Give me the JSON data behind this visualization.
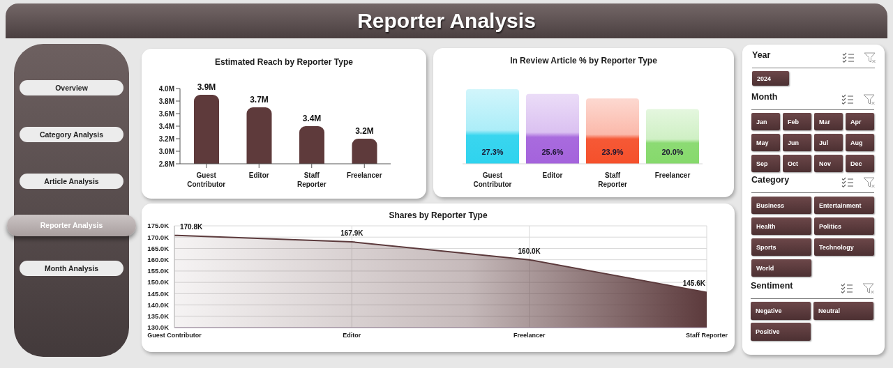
{
  "chart_data": [
    {
      "type": "other",
      "title": "Reporter Analysis"
    },
    {
      "type": "other",
      "annotations": [
        "Overview",
        "Category Analysis",
        "Article Analysis",
        "Reporter Analysis",
        "Month Analysis"
      ]
    },
    {
      "type": "bar",
      "title": "Estimated Reach by Reporter Type",
      "categories": [
        "Guest Contributor",
        "Editor",
        "Staff Reporter",
        "Freelancer"
      ],
      "values": [
        3.9,
        3.7,
        3.4,
        3.2
      ],
      "value_labels": [
        "3.9M",
        "3.7M",
        "3.4M",
        "3.2M"
      ],
      "color": "#5e3a3b",
      "ylim": [
        2.8,
        4.0
      ],
      "yticks": [
        {
          "value": 2.8,
          "label": "2.8M"
        },
        {
          "value": 3.0,
          "label": "3.0M"
        },
        {
          "value": 3.2,
          "label": "3.2M"
        },
        {
          "value": 3.4,
          "label": "3.4M"
        },
        {
          "value": 3.6,
          "label": "3.6M"
        },
        {
          "value": 3.8,
          "label": "3.8M"
        },
        {
          "value": 4.0,
          "label": "4.0M"
        }
      ]
    },
    {
      "type": "bar",
      "title": "In Review Article % by Reporter Type",
      "categories": [
        "Guest Contributor",
        "Editor",
        "Staff Reporter",
        "Freelancer"
      ],
      "values": [
        27.3,
        25.6,
        23.9,
        20.0
      ],
      "value_labels": [
        "27.3%",
        "25.6%",
        "23.9%",
        "20.0%"
      ],
      "colors": [
        "#2fd3ee",
        "#a463dc",
        "#f5502b",
        "#86d96c"
      ]
    },
    {
      "type": "area",
      "title": "Shares by Reporter Type",
      "categories": [
        "Guest Contributor",
        "Editor",
        "Freelancer",
        "Staff Reporter"
      ],
      "values": [
        170.8,
        167.9,
        160.0,
        145.6
      ],
      "value_labels": [
        "170.8K",
        "167.9K",
        "160.0K",
        "145.6K"
      ],
      "color": "#5c3a3c",
      "ylim": [
        130,
        175
      ],
      "yticks": [
        {
          "value": 130,
          "label": "130.0K"
        },
        {
          "value": 135,
          "label": "135.0K"
        },
        {
          "value": 140,
          "label": "140.0K"
        },
        {
          "value": 145,
          "label": "145.0K"
        },
        {
          "value": 150,
          "label": "150.0K"
        },
        {
          "value": 155,
          "label": "155.0K"
        },
        {
          "value": 160,
          "label": "160.0K"
        },
        {
          "value": 165,
          "label": "165.0K"
        },
        {
          "value": 170,
          "label": "170.0K"
        },
        {
          "value": 175,
          "label": "175.0K"
        }
      ],
      "grid": true
    },
    {
      "type": "other",
      "title": "Year",
      "annotations": [
        "2024"
      ]
    },
    {
      "type": "other",
      "title": "Month",
      "annotations": [
        "Jan",
        "Feb",
        "Mar",
        "Apr",
        "May",
        "Jun",
        "Jul",
        "Aug",
        "Sep",
        "Oct",
        "Nov",
        "Dec"
      ]
    },
    {
      "type": "other",
      "title": "Category",
      "annotations": [
        "Business",
        "Entertainment",
        "Health",
        "Politics",
        "Sports",
        "Technology",
        "World"
      ]
    },
    {
      "type": "other",
      "title": "Sentiment",
      "annotations": [
        "Negative",
        "Neutral",
        "Positive"
      ]
    }
  ]
}
